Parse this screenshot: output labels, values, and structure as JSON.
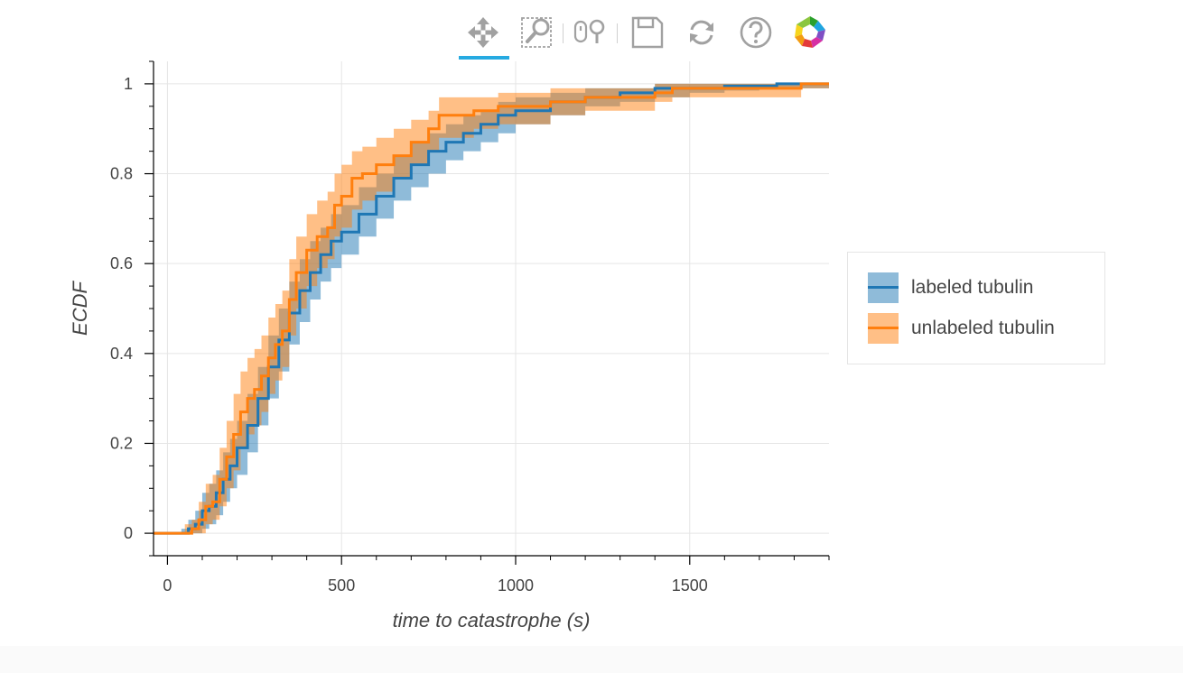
{
  "toolbar": {
    "tools": [
      {
        "name": "pan-tool",
        "icon": "pan-icon",
        "active": true
      },
      {
        "name": "box-zoom-tool",
        "icon": "box-zoom-icon",
        "active": false
      },
      {
        "name": "wheel-zoom-tool",
        "icon": "wheel-zoom-icon",
        "active": false
      },
      {
        "name": "save-tool",
        "icon": "save-icon",
        "active": false
      },
      {
        "name": "reset-tool",
        "icon": "reset-icon",
        "active": false
      },
      {
        "name": "help-tool",
        "icon": "help-icon",
        "active": false
      },
      {
        "name": "bokeh-logo",
        "icon": "bokeh-logo-icon",
        "active": false
      }
    ],
    "active_color": "#26aae1",
    "icon_color": "#a1a1a1"
  },
  "chart_data": {
    "type": "line",
    "xlabel": "time to catastrophe (s)",
    "ylabel": "ECDF",
    "xlim": [
      -40,
      1900
    ],
    "ylim": [
      -0.05,
      1.05
    ],
    "x_ticks": [
      0,
      500,
      1000,
      1500
    ],
    "y_ticks": [
      0,
      0.2,
      0.4,
      0.6,
      0.8,
      1
    ],
    "y_tick_labels": [
      "0",
      "0.2",
      "0.4",
      "0.6",
      "0.8",
      "1"
    ],
    "grid": true,
    "legend_position": "right",
    "series": [
      {
        "name": "labeled tubulin",
        "color": "#1f77b4",
        "band_color": "#1f77b4",
        "points": [
          [
            -40,
            0
          ],
          [
            40,
            0
          ],
          [
            60,
            0.01
          ],
          [
            80,
            0.02
          ],
          [
            100,
            0.05
          ],
          [
            120,
            0.06
          ],
          [
            140,
            0.09
          ],
          [
            160,
            0.12
          ],
          [
            180,
            0.15
          ],
          [
            200,
            0.19
          ],
          [
            230,
            0.24
          ],
          [
            260,
            0.3
          ],
          [
            290,
            0.37
          ],
          [
            320,
            0.43
          ],
          [
            350,
            0.49
          ],
          [
            380,
            0.54
          ],
          [
            410,
            0.58
          ],
          [
            440,
            0.62
          ],
          [
            470,
            0.65
          ],
          [
            500,
            0.67
          ],
          [
            550,
            0.71
          ],
          [
            600,
            0.75
          ],
          [
            650,
            0.79
          ],
          [
            700,
            0.82
          ],
          [
            750,
            0.85
          ],
          [
            800,
            0.87
          ],
          [
            850,
            0.89
          ],
          [
            900,
            0.91
          ],
          [
            950,
            0.93
          ],
          [
            1000,
            0.94
          ],
          [
            1100,
            0.96
          ],
          [
            1200,
            0.97
          ],
          [
            1300,
            0.98
          ],
          [
            1400,
            0.99
          ],
          [
            1500,
            0.99
          ],
          [
            1600,
            0.995
          ],
          [
            1700,
            0.995
          ],
          [
            1750,
            1
          ],
          [
            1900,
            1
          ]
        ],
        "band_low": [
          [
            -40,
            0
          ],
          [
            40,
            0
          ],
          [
            60,
            0
          ],
          [
            80,
            0
          ],
          [
            100,
            0.01
          ],
          [
            120,
            0.02
          ],
          [
            140,
            0.04
          ],
          [
            160,
            0.07
          ],
          [
            180,
            0.1
          ],
          [
            200,
            0.13
          ],
          [
            230,
            0.18
          ],
          [
            260,
            0.24
          ],
          [
            290,
            0.3
          ],
          [
            320,
            0.36
          ],
          [
            350,
            0.42
          ],
          [
            380,
            0.47
          ],
          [
            410,
            0.52
          ],
          [
            440,
            0.56
          ],
          [
            470,
            0.59
          ],
          [
            500,
            0.62
          ],
          [
            550,
            0.66
          ],
          [
            600,
            0.7
          ],
          [
            650,
            0.74
          ],
          [
            700,
            0.77
          ],
          [
            750,
            0.8
          ],
          [
            800,
            0.83
          ],
          [
            850,
            0.85
          ],
          [
            900,
            0.87
          ],
          [
            950,
            0.89
          ],
          [
            1000,
            0.91
          ],
          [
            1100,
            0.93
          ],
          [
            1200,
            0.95
          ],
          [
            1300,
            0.96
          ],
          [
            1400,
            0.97
          ],
          [
            1500,
            0.98
          ],
          [
            1600,
            0.985
          ],
          [
            1700,
            0.99
          ],
          [
            1750,
            0.99
          ],
          [
            1900,
            0.99
          ]
        ],
        "band_high": [
          [
            -40,
            0
          ],
          [
            40,
            0.01
          ],
          [
            60,
            0.03
          ],
          [
            80,
            0.05
          ],
          [
            100,
            0.09
          ],
          [
            120,
            0.11
          ],
          [
            140,
            0.14
          ],
          [
            160,
            0.18
          ],
          [
            180,
            0.21
          ],
          [
            200,
            0.25
          ],
          [
            230,
            0.31
          ],
          [
            260,
            0.37
          ],
          [
            290,
            0.44
          ],
          [
            320,
            0.5
          ],
          [
            350,
            0.56
          ],
          [
            380,
            0.61
          ],
          [
            410,
            0.65
          ],
          [
            440,
            0.68
          ],
          [
            470,
            0.71
          ],
          [
            500,
            0.73
          ],
          [
            550,
            0.77
          ],
          [
            600,
            0.8
          ],
          [
            650,
            0.84
          ],
          [
            700,
            0.87
          ],
          [
            750,
            0.89
          ],
          [
            800,
            0.91
          ],
          [
            850,
            0.93
          ],
          [
            900,
            0.94
          ],
          [
            950,
            0.96
          ],
          [
            1000,
            0.97
          ],
          [
            1100,
            0.98
          ],
          [
            1200,
            0.99
          ],
          [
            1300,
            0.99
          ],
          [
            1400,
            1
          ],
          [
            1500,
            1
          ],
          [
            1600,
            1
          ],
          [
            1700,
            1
          ],
          [
            1750,
            1
          ],
          [
            1900,
            1
          ]
        ]
      },
      {
        "name": "unlabeled tubulin",
        "color": "#ff7f0e",
        "band_color": "#ff7f0e",
        "points": [
          [
            -40,
            0
          ],
          [
            50,
            0
          ],
          [
            70,
            0.01
          ],
          [
            90,
            0.03
          ],
          [
            110,
            0.06
          ],
          [
            130,
            0.07
          ],
          [
            150,
            0.12
          ],
          [
            170,
            0.17
          ],
          [
            190,
            0.22
          ],
          [
            210,
            0.27
          ],
          [
            230,
            0.3
          ],
          [
            250,
            0.32
          ],
          [
            270,
            0.35
          ],
          [
            290,
            0.39
          ],
          [
            310,
            0.42
          ],
          [
            330,
            0.45
          ],
          [
            350,
            0.52
          ],
          [
            370,
            0.58
          ],
          [
            400,
            0.63
          ],
          [
            430,
            0.66
          ],
          [
            460,
            0.68
          ],
          [
            480,
            0.73
          ],
          [
            500,
            0.75
          ],
          [
            530,
            0.79
          ],
          [
            560,
            0.8
          ],
          [
            600,
            0.82
          ],
          [
            650,
            0.84
          ],
          [
            700,
            0.87
          ],
          [
            750,
            0.9
          ],
          [
            780,
            0.93
          ],
          [
            830,
            0.93
          ],
          [
            880,
            0.94
          ],
          [
            950,
            0.95
          ],
          [
            1000,
            0.95
          ],
          [
            1100,
            0.96
          ],
          [
            1200,
            0.97
          ],
          [
            1400,
            0.98
          ],
          [
            1450,
            0.99
          ],
          [
            1800,
            0.99
          ],
          [
            1820,
            1
          ],
          [
            1900,
            1
          ]
        ],
        "band_low": [
          [
            -40,
            0
          ],
          [
            50,
            0
          ],
          [
            70,
            0
          ],
          [
            90,
            0
          ],
          [
            110,
            0.02
          ],
          [
            130,
            0.03
          ],
          [
            150,
            0.06
          ],
          [
            170,
            0.1
          ],
          [
            190,
            0.14
          ],
          [
            210,
            0.19
          ],
          [
            230,
            0.22
          ],
          [
            250,
            0.24
          ],
          [
            270,
            0.27
          ],
          [
            290,
            0.31
          ],
          [
            310,
            0.34
          ],
          [
            330,
            0.37
          ],
          [
            350,
            0.44
          ],
          [
            370,
            0.5
          ],
          [
            400,
            0.55
          ],
          [
            430,
            0.59
          ],
          [
            460,
            0.61
          ],
          [
            480,
            0.66
          ],
          [
            500,
            0.68
          ],
          [
            530,
            0.72
          ],
          [
            560,
            0.74
          ],
          [
            600,
            0.76
          ],
          [
            650,
            0.79
          ],
          [
            700,
            0.82
          ],
          [
            750,
            0.85
          ],
          [
            780,
            0.88
          ],
          [
            830,
            0.88
          ],
          [
            880,
            0.9
          ],
          [
            950,
            0.91
          ],
          [
            1000,
            0.91
          ],
          [
            1100,
            0.93
          ],
          [
            1200,
            0.94
          ],
          [
            1400,
            0.96
          ],
          [
            1450,
            0.97
          ],
          [
            1800,
            0.97
          ],
          [
            1820,
            0.99
          ],
          [
            1900,
            0.99
          ]
        ],
        "band_high": [
          [
            -40,
            0
          ],
          [
            50,
            0.02
          ],
          [
            70,
            0.03
          ],
          [
            90,
            0.07
          ],
          [
            110,
            0.11
          ],
          [
            130,
            0.13
          ],
          [
            150,
            0.19
          ],
          [
            170,
            0.25
          ],
          [
            190,
            0.31
          ],
          [
            210,
            0.36
          ],
          [
            230,
            0.39
          ],
          [
            250,
            0.41
          ],
          [
            270,
            0.44
          ],
          [
            290,
            0.48
          ],
          [
            310,
            0.51
          ],
          [
            330,
            0.54
          ],
          [
            350,
            0.61
          ],
          [
            370,
            0.66
          ],
          [
            400,
            0.71
          ],
          [
            430,
            0.74
          ],
          [
            460,
            0.76
          ],
          [
            480,
            0.8
          ],
          [
            500,
            0.82
          ],
          [
            530,
            0.85
          ],
          [
            560,
            0.86
          ],
          [
            600,
            0.88
          ],
          [
            650,
            0.9
          ],
          [
            700,
            0.92
          ],
          [
            750,
            0.94
          ],
          [
            780,
            0.97
          ],
          [
            830,
            0.97
          ],
          [
            880,
            0.97
          ],
          [
            950,
            0.98
          ],
          [
            1000,
            0.98
          ],
          [
            1100,
            0.99
          ],
          [
            1200,
            0.99
          ],
          [
            1400,
            1
          ],
          [
            1450,
            1
          ],
          [
            1800,
            1
          ],
          [
            1820,
            1
          ],
          [
            1900,
            1
          ]
        ]
      }
    ]
  }
}
